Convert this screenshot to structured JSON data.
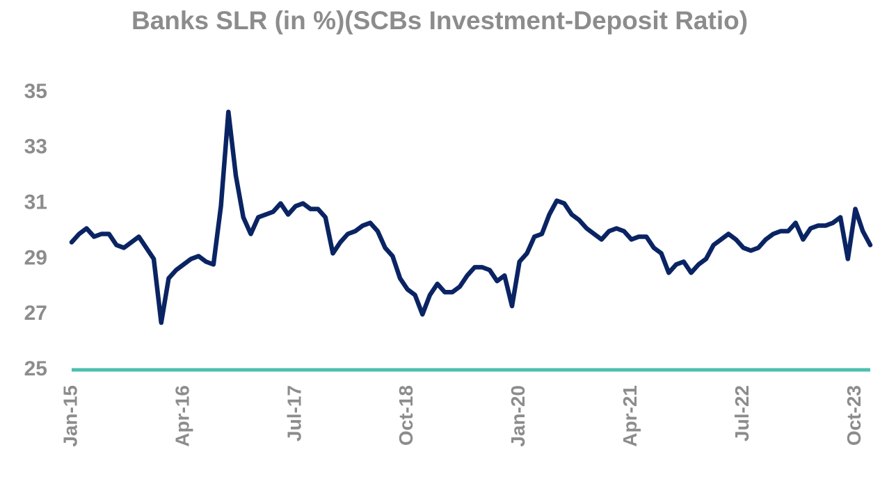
{
  "chart_data": {
    "type": "line",
    "title": "Banks SLR (in %)(SCBs Investment-Deposit Ratio)",
    "categories": [
      "Jan-15",
      null,
      null,
      null,
      null,
      null,
      null,
      null,
      null,
      null,
      null,
      null,
      null,
      null,
      null,
      "Apr-16",
      null,
      null,
      null,
      null,
      null,
      null,
      null,
      null,
      null,
      null,
      null,
      null,
      null,
      null,
      "Jul-17",
      null,
      null,
      null,
      null,
      null,
      null,
      null,
      null,
      null,
      null,
      null,
      null,
      null,
      null,
      "Oct-18",
      null,
      null,
      null,
      null,
      null,
      null,
      null,
      null,
      null,
      null,
      null,
      null,
      null,
      null,
      "Jan-20",
      null,
      null,
      null,
      null,
      null,
      null,
      null,
      null,
      null,
      null,
      null,
      null,
      null,
      null,
      "Apr-21",
      null,
      null,
      null,
      null,
      null,
      null,
      null,
      null,
      null,
      null,
      null,
      null,
      null,
      null,
      "Jul-22",
      null,
      null,
      null,
      null,
      null,
      null,
      null,
      null,
      null,
      null,
      null,
      null,
      null,
      null,
      "Oct-23",
      null,
      null
    ],
    "values": [
      29.6,
      29.9,
      30.1,
      29.8,
      29.9,
      29.9,
      29.5,
      29.4,
      29.6,
      29.8,
      29.4,
      29.0,
      26.7,
      28.3,
      28.6,
      28.8,
      29.0,
      29.1,
      28.9,
      28.8,
      30.9,
      34.3,
      32.0,
      30.5,
      29.9,
      30.5,
      30.6,
      30.7,
      31.0,
      30.6,
      30.9,
      31.0,
      30.8,
      30.8,
      30.5,
      29.2,
      29.6,
      29.9,
      30.0,
      30.2,
      30.3,
      30.0,
      29.4,
      29.1,
      28.3,
      27.9,
      27.7,
      27.0,
      27.7,
      28.1,
      27.8,
      27.8,
      28.0,
      28.4,
      28.7,
      28.7,
      28.6,
      28.2,
      28.4,
      27.3,
      28.9,
      29.2,
      29.8,
      29.9,
      30.6,
      31.1,
      31.0,
      30.6,
      30.4,
      30.1,
      29.9,
      29.7,
      30.0,
      30.1,
      30.0,
      29.7,
      29.8,
      29.8,
      29.4,
      29.2,
      28.5,
      28.8,
      28.9,
      28.5,
      28.8,
      29.0,
      29.5,
      29.7,
      29.9,
      29.7,
      29.4,
      29.3,
      29.4,
      29.7,
      29.9,
      30.0,
      30.0,
      30.3,
      29.7,
      30.1,
      30.2,
      30.2,
      30.3,
      30.5,
      29.0,
      30.8,
      30.0,
      29.5
    ],
    "color": "#0a2463",
    "axis_color": "#4dbfae",
    "ylim": [
      25,
      35
    ],
    "yticks": [
      25,
      27,
      29,
      31,
      33,
      35
    ],
    "grid": false
  }
}
